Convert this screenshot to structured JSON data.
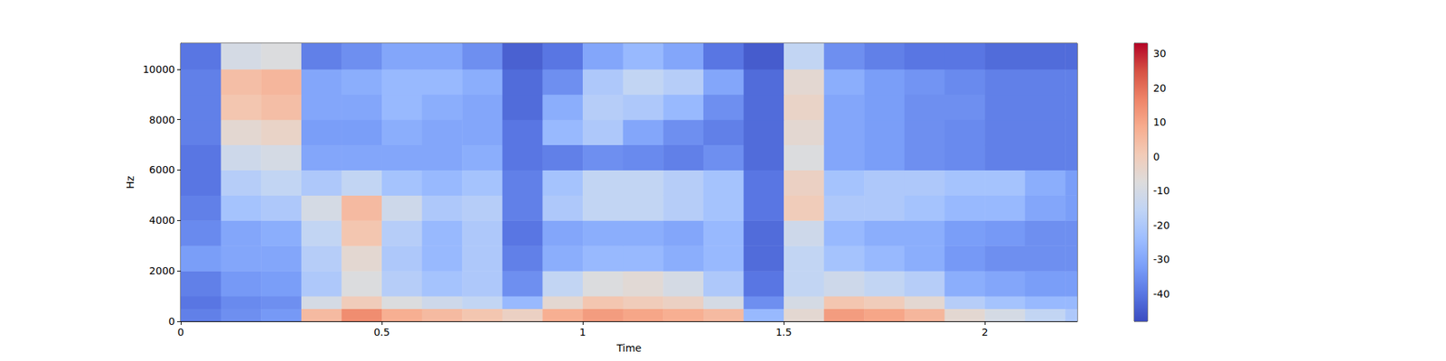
{
  "chart_data": {
    "type": "heatmap",
    "x_label": "Time",
    "y_label": "Hz",
    "xlim": [
      0,
      2.23
    ],
    "xticks": [
      0,
      0.5,
      1,
      1.5,
      2
    ],
    "ylim": [
      0,
      11025
    ],
    "yticks": [
      0,
      2000,
      4000,
      6000,
      8000,
      10000
    ],
    "x_edges": [
      0,
      0.1,
      0.2,
      0.3,
      0.4,
      0.5,
      0.6,
      0.7,
      0.8,
      0.9,
      1.0,
      1.1,
      1.2,
      1.3,
      1.4,
      1.5,
      1.6,
      1.7,
      1.8,
      1.9,
      2.0,
      2.1,
      2.2,
      2.23
    ],
    "y_edges": [
      0,
      500,
      1000,
      2000,
      3000,
      4000,
      5000,
      6000,
      7000,
      8000,
      9000,
      10000,
      11025
    ],
    "cells": [
      [
        -38,
        -35,
        -33,
        5,
        15,
        8,
        5,
        2,
        -2,
        8,
        12,
        10,
        8,
        5,
        -25,
        -5,
        12,
        10,
        6,
        -5,
        -10,
        -15,
        -20
      ],
      [
        -40,
        -36,
        -35,
        -10,
        0,
        -8,
        -12,
        -15,
        -25,
        -5,
        2,
        0,
        -2,
        -10,
        -35,
        -10,
        2,
        0,
        -5,
        -18,
        -22,
        -25,
        -25
      ],
      [
        -38,
        -33,
        -32,
        -20,
        -8,
        -18,
        -22,
        -20,
        -35,
        -15,
        -8,
        -6,
        -10,
        -20,
        -40,
        -15,
        -12,
        -15,
        -18,
        -28,
        -30,
        -32,
        -32
      ],
      [
        -32,
        -30,
        -30,
        -18,
        -5,
        -20,
        -25,
        -20,
        -38,
        -28,
        -25,
        -25,
        -28,
        -25,
        -42,
        -15,
        -22,
        -25,
        -28,
        -33,
        -35,
        -35,
        -35
      ],
      [
        -36,
        -30,
        -28,
        -15,
        2,
        -18,
        -25,
        -20,
        -40,
        -30,
        -28,
        -28,
        -30,
        -25,
        -42,
        -12,
        -25,
        -28,
        -28,
        -32,
        -33,
        -35,
        -35
      ],
      [
        -38,
        -22,
        -20,
        -10,
        5,
        -12,
        -20,
        -18,
        -38,
        -20,
        -15,
        -15,
        -18,
        -22,
        -40,
        0,
        -20,
        -20,
        -22,
        -25,
        -25,
        -30,
        -32
      ],
      [
        -40,
        -18,
        -15,
        -20,
        -15,
        -22,
        -25,
        -22,
        -38,
        -22,
        -15,
        -15,
        -18,
        -22,
        -40,
        -2,
        -22,
        -20,
        -20,
        -22,
        -22,
        -28,
        -32
      ],
      [
        -40,
        -12,
        -10,
        -30,
        -30,
        -30,
        -30,
        -28,
        -40,
        -38,
        -35,
        -36,
        -38,
        -35,
        -42,
        -8,
        -30,
        -32,
        -35,
        -36,
        -38,
        -38,
        -38
      ],
      [
        -38,
        -5,
        -3,
        -32,
        -32,
        -28,
        -30,
        -30,
        -40,
        -25,
        -20,
        -30,
        -35,
        -38,
        -42,
        -5,
        -30,
        -32,
        -35,
        -36,
        -38,
        -38,
        -38
      ],
      [
        -38,
        2,
        4,
        -30,
        -30,
        -25,
        -28,
        -30,
        -42,
        -28,
        -18,
        -20,
        -25,
        -35,
        -42,
        -3,
        -30,
        -32,
        -35,
        -35,
        -38,
        -38,
        -38
      ],
      [
        -38,
        4,
        6,
        -30,
        -28,
        -25,
        -25,
        -28,
        -42,
        -35,
        -20,
        -15,
        -18,
        -30,
        -42,
        -5,
        -28,
        -32,
        -34,
        -36,
        -38,
        -38,
        -38
      ],
      [
        -40,
        -10,
        -8,
        -38,
        -35,
        -30,
        -30,
        -35,
        -44,
        -40,
        -30,
        -25,
        -30,
        -40,
        -45,
        -15,
        -35,
        -38,
        -40,
        -40,
        -42,
        -42,
        -42
      ]
    ],
    "colorbar": {
      "range": [
        -48,
        33
      ],
      "ticks": [
        -40,
        -30,
        -20,
        -10,
        0,
        10,
        20,
        30
      ]
    }
  }
}
